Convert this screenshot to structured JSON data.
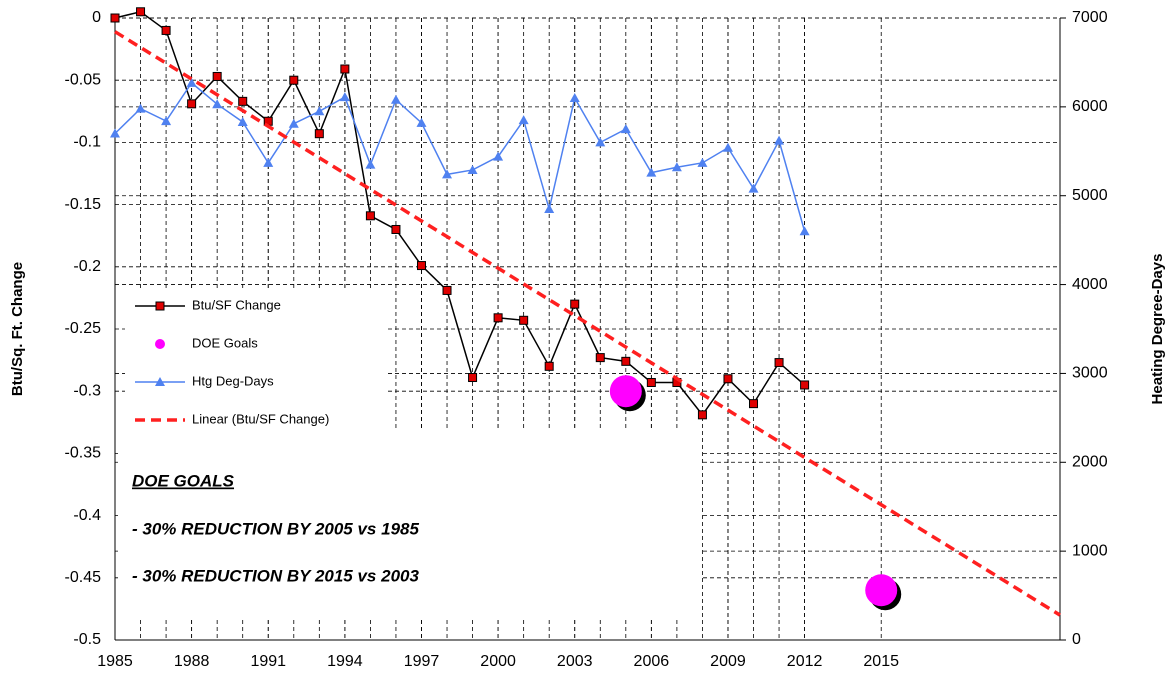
{
  "chart_data": {
    "type": "line",
    "x": [
      1985,
      1986,
      1987,
      1988,
      1989,
      1990,
      1991,
      1992,
      1993,
      1994,
      1995,
      1996,
      1997,
      1998,
      1999,
      2000,
      2001,
      2002,
      2003,
      2004,
      2005,
      2006,
      2007,
      2008,
      2009,
      2010,
      2011,
      2012
    ],
    "series": [
      {
        "name": "Btu/SF Change",
        "color": "#000000",
        "marker_color": "#e00000",
        "marker": "square",
        "values": [
          0,
          0.005,
          -0.01,
          -0.069,
          -0.047,
          -0.067,
          -0.083,
          -0.05,
          -0.093,
          -0.041,
          -0.159,
          -0.17,
          -0.199,
          -0.219,
          -0.289,
          -0.241,
          -0.243,
          -0.28,
          -0.23,
          -0.273,
          -0.276,
          -0.293,
          -0.293,
          -0.319,
          -0.29,
          -0.31,
          -0.277,
          -0.295
        ]
      },
      {
        "name": "DOE Goals",
        "color": "#ff00ff",
        "marker": "circle",
        "x": [
          2005,
          2015
        ],
        "values": [
          -0.3,
          -0.46
        ]
      },
      {
        "name": "Htg Deg-Days",
        "color": "#4f81f0",
        "marker": "triangle",
        "axis": "y2",
        "values": [
          5700,
          5980,
          5840,
          6270,
          6030,
          5830,
          5370,
          5810,
          5950,
          6110,
          5350,
          6080,
          5820,
          5240,
          5290,
          5440,
          5850,
          4850,
          6100,
          5600,
          5750,
          5260,
          5320,
          5370,
          5540,
          5080,
          5620,
          4600
        ]
      },
      {
        "name": "Linear (Btu/SF Change)",
        "color": "#ff2020",
        "dashed": true,
        "x": [
          1985,
          2022
        ],
        "values": [
          -0.011,
          -0.48
        ]
      }
    ],
    "ylabel": "Btu/Sq. Ft. Change",
    "y2label": "Heating Degree-Days",
    "xlim": [
      1985,
      2022
    ],
    "xticks": [
      1985,
      1988,
      1991,
      1994,
      1997,
      2000,
      2003,
      2006,
      2009,
      2012,
      2015
    ],
    "ylim": [
      -0.5,
      0
    ],
    "yticks": [
      0,
      -0.05,
      -0.1,
      -0.15,
      -0.2,
      -0.25,
      -0.3,
      -0.35,
      -0.4,
      -0.45,
      -0.5
    ],
    "y2lim": [
      0,
      7000
    ],
    "y2ticks": [
      0,
      1000,
      2000,
      3000,
      4000,
      5000,
      6000,
      7000
    ],
    "grid": true,
    "legend": "left",
    "annotations": [
      "DOE GOALS",
      "- 30% REDUCTION BY 2005 vs 1985",
      "- 30% REDUCTION BY 2015 vs 2003"
    ]
  }
}
